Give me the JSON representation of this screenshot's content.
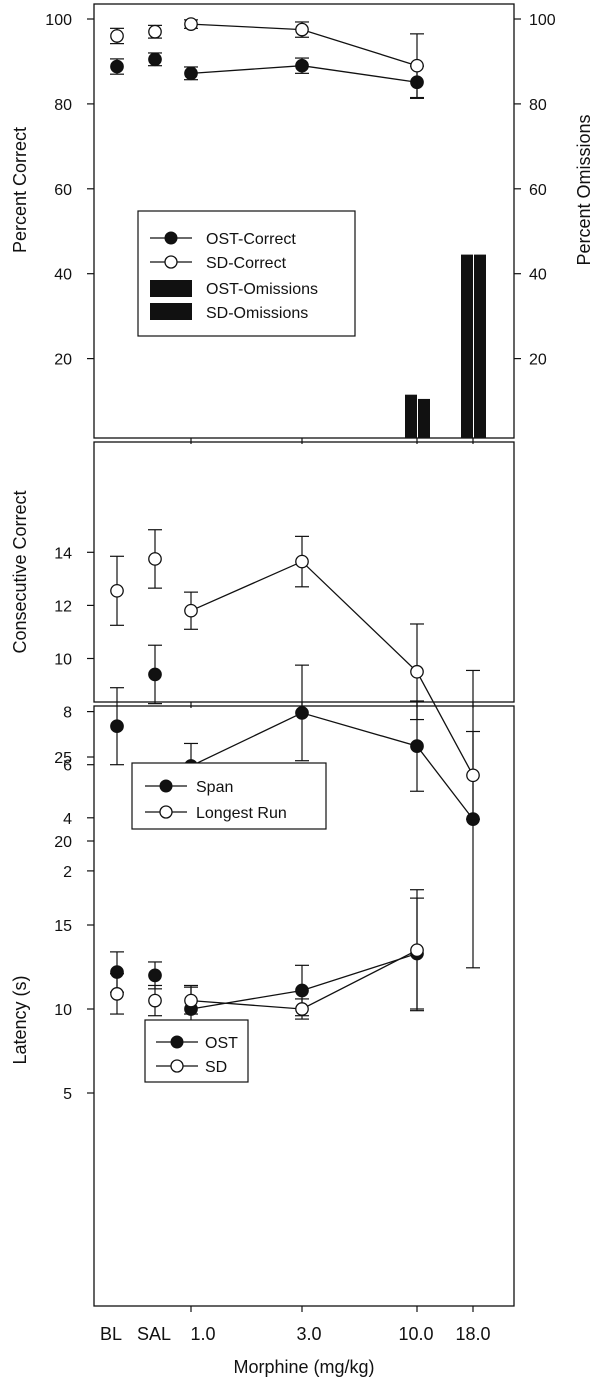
{
  "figure": {
    "xlabel": "Morphine (mg/kg)",
    "x_tick_labels": [
      "BL",
      "SAL",
      "1.0",
      "3.0",
      "10.0",
      "18.0"
    ]
  },
  "chart_data": [
    {
      "panel": "top",
      "type": "line",
      "ylabel": "Percent Correct",
      "ylabel_right": "Percent Omissions",
      "ylim": [
        0,
        100
      ],
      "yticks": [
        20,
        40,
        60,
        80,
        100
      ],
      "yticks_right": [
        20,
        40,
        60,
        80,
        100
      ],
      "categories": [
        "BL",
        "SAL",
        "1.0",
        "3.0",
        "10.0",
        "18.0"
      ],
      "series": [
        {
          "name": "OST-Correct",
          "kind": "line",
          "marker": "filled-circle",
          "connect_from": 2,
          "values": [
            88.8,
            90.5,
            87.2,
            89.0,
            85.1,
            null
          ],
          "errors": [
            1.8,
            1.5,
            1.5,
            1.8,
            3.8,
            null
          ]
        },
        {
          "name": "SD-Correct",
          "kind": "line",
          "marker": "open-circle",
          "connect_from": 2,
          "values": [
            96.0,
            97.0,
            98.8,
            97.5,
            89.0,
            null
          ],
          "errors": [
            1.8,
            1.5,
            1.0,
            1.8,
            7.5,
            null
          ]
        },
        {
          "name": "OST-Omissions",
          "kind": "bar",
          "axis": "right",
          "values": [
            null,
            null,
            null,
            null,
            11.5,
            44.5
          ]
        },
        {
          "name": "SD-Omissions",
          "kind": "bar",
          "axis": "right",
          "values": [
            null,
            null,
            null,
            null,
            10.5,
            44.5
          ]
        }
      ],
      "legend": {
        "placement": "center-left",
        "entries": [
          "OST-Correct",
          "SD-Correct",
          "OST-Omissions",
          "SD-Omissions"
        ]
      }
    },
    {
      "panel": "middle",
      "type": "line",
      "ylabel": "Consecutive Correct",
      "ylim": [
        0,
        15.4
      ],
      "yticks": [
        2,
        4,
        6,
        8,
        10,
        12,
        14
      ],
      "categories": [
        "BL",
        "SAL",
        "1.0",
        "3.0",
        "10.0",
        "18.0"
      ],
      "series": [
        {
          "name": "Span",
          "kind": "line",
          "marker": "filled-circle",
          "connect_from": 2,
          "values": [
            7.45,
            9.4,
            5.95,
            7.95,
            6.7,
            3.95
          ],
          "errors": [
            1.45,
            1.1,
            0.85,
            1.8,
            1.7,
            5.6
          ]
        },
        {
          "name": "Longest Run",
          "kind": "line",
          "marker": "open-circle",
          "connect_from": 2,
          "values": [
            12.55,
            13.75,
            11.8,
            13.65,
            9.5,
            5.6
          ],
          "errors": [
            1.3,
            1.1,
            0.7,
            0.95,
            1.8,
            1.65
          ]
        }
      ],
      "legend": {
        "placement": "bottom-left",
        "entries": [
          "Span",
          "Longest Run"
        ]
      }
    },
    {
      "panel": "bottom",
      "type": "line",
      "ylabel": "Latency (s)",
      "ylim": [
        0,
        29
      ],
      "yticks": [
        5,
        10,
        15,
        20,
        25
      ],
      "categories": [
        "BL",
        "SAL",
        "1.0",
        "3.0",
        "10.0",
        "18.0"
      ],
      "series": [
        {
          "name": "OST",
          "kind": "line",
          "marker": "filled-circle",
          "connect_from": 2,
          "values": [
            12.2,
            12.0,
            10.0,
            11.1,
            13.3,
            null
          ],
          "errors": [
            1.2,
            0.8,
            1.4,
            1.5,
            3.3,
            null
          ]
        },
        {
          "name": "SD",
          "kind": "line",
          "marker": "open-circle",
          "connect_from": 2,
          "values": [
            10.9,
            10.5,
            10.5,
            10.0,
            13.5,
            null
          ],
          "errors": [
            1.2,
            0.9,
            0.8,
            0.6,
            3.6,
            null
          ]
        }
      ],
      "legend": {
        "placement": "center-left",
        "entries": [
          "OST",
          "SD"
        ]
      }
    }
  ]
}
